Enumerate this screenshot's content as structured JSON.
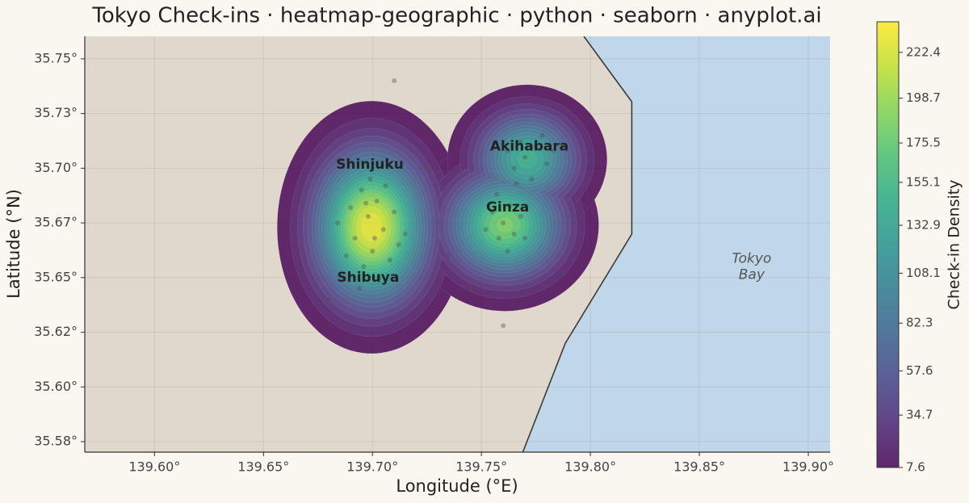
{
  "chart_data": {
    "type": "heatmap-geographic",
    "title": "Tokyo Check-ins · heatmap-geographic · python · seaborn · anyplot.ai",
    "x_label": "Longitude (°E)",
    "y_label": "Latitude (°N)",
    "xlim": [
      139.568,
      139.91
    ],
    "ylim": [
      35.5702,
      35.7603
    ],
    "xticks": [
      {
        "value": 139.6,
        "label": "139.60°"
      },
      {
        "value": 139.65,
        "label": "139.65°"
      },
      {
        "value": 139.7,
        "label": "139.70°"
      },
      {
        "value": 139.75,
        "label": "139.75°"
      },
      {
        "value": 139.8,
        "label": "139.80°"
      },
      {
        "value": 139.85,
        "label": "139.85°"
      },
      {
        "value": 139.9,
        "label": "139.90°"
      }
    ],
    "yticks": [
      {
        "value": 35.575,
        "label": "35.58°"
      },
      {
        "value": 35.6,
        "label": "35.60°"
      },
      {
        "value": 35.625,
        "label": "35.62°"
      },
      {
        "value": 35.65,
        "label": "35.65°"
      },
      {
        "value": 35.675,
        "label": "35.67°"
      },
      {
        "value": 35.7,
        "label": "35.70°"
      },
      {
        "value": 35.725,
        "label": "35.73°"
      },
      {
        "value": 35.75,
        "label": "35.75°"
      }
    ],
    "grid": true,
    "land_color": "#e0d8cc",
    "water_color": "#c0d7ea",
    "coastline": {
      "lon": [
        139.797,
        139.819,
        139.819,
        139.7885,
        139.769
      ],
      "lat": [
        35.7603,
        35.7304,
        35.6699,
        35.62,
        35.5702
      ]
    },
    "hotspots": [
      {
        "lon": 139.6996,
        "lat": 35.673,
        "peak": 238,
        "spread_deg": [
          0.0165,
          0.022
        ]
      },
      {
        "lon": 139.7607,
        "lat": 35.674,
        "peak": 190,
        "spread_deg": [
          0.017,
          0.0155
        ]
      },
      {
        "lon": 139.771,
        "lat": 35.704,
        "peak": 150,
        "spread_deg": [
          0.015,
          0.014
        ]
      }
    ],
    "points": {
      "lon": [
        139.695,
        139.702,
        139.698,
        139.705,
        139.692,
        139.7,
        139.708,
        139.696,
        139.703,
        139.69,
        139.71,
        139.688,
        139.712,
        139.699,
        139.694,
        139.706,
        139.684,
        139.715,
        139.701,
        139.697,
        139.76,
        139.765,
        139.755,
        139.768,
        139.758,
        139.763,
        139.752,
        139.77,
        139.762,
        139.757,
        139.77,
        139.775,
        139.765,
        139.78,
        139.768,
        139.773,
        139.762,
        139.778,
        139.783,
        139.766,
        139.71,
        139.76,
        139.735,
        139.725,
        139.745,
        139.68
      ],
      "lat": [
        35.69,
        35.685,
        35.678,
        35.672,
        35.668,
        35.662,
        35.658,
        35.655,
        35.65,
        35.682,
        35.68,
        35.66,
        35.665,
        35.695,
        35.645,
        35.692,
        35.675,
        35.67,
        35.668,
        35.684,
        35.675,
        35.67,
        35.68,
        35.678,
        35.668,
        35.683,
        35.672,
        35.668,
        35.662,
        35.688,
        35.705,
        35.71,
        35.7,
        35.702,
        35.712,
        35.695,
        35.708,
        35.715,
        35.708,
        35.693,
        35.74,
        35.628,
        35.66,
        35.7,
        35.645,
        35.64
      ]
    },
    "places": [
      {
        "name": "Shinjuku",
        "lon": 139.6988,
        "lat": 35.7016
      },
      {
        "name": "Akihabara",
        "lon": 139.772,
        "lat": 35.71
      },
      {
        "name": "Ginza",
        "lon": 139.762,
        "lat": 35.682
      },
      {
        "name": "Shibuya",
        "lon": 139.698,
        "lat": 35.65
      }
    ],
    "water_label": {
      "lines": [
        "Tokyo",
        "Bay"
      ],
      "lon": 139.874,
      "lat": 35.655
    },
    "colorbar": {
      "label": "Check-in Density",
      "lim": [
        7.6,
        238.2
      ],
      "ticks": [
        7.6,
        34.7,
        57.6,
        82.3,
        108.1,
        132.9,
        155.1,
        175.5,
        198.7,
        222.4
      ]
    }
  }
}
